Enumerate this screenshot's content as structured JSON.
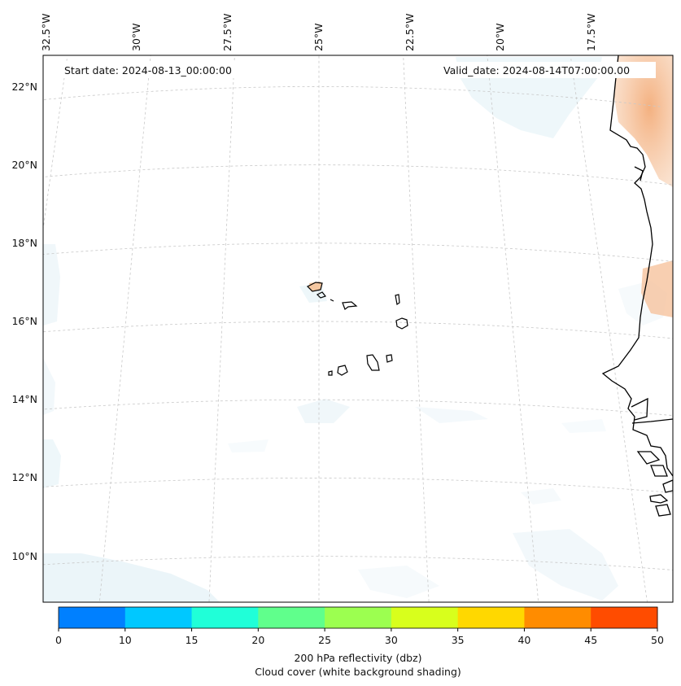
{
  "map": {
    "lon_labels": [
      {
        "value": -32.5,
        "text": "32.5°W"
      },
      {
        "value": -30,
        "text": "30°W"
      },
      {
        "value": -27.5,
        "text": "27.5°W"
      },
      {
        "value": -25,
        "text": "25°W"
      },
      {
        "value": -22.5,
        "text": "22.5°W"
      },
      {
        "value": -20,
        "text": "20°W"
      },
      {
        "value": -17.5,
        "text": "17.5°W"
      }
    ],
    "lat_labels": [
      {
        "value": 22,
        "text": "22°N"
      },
      {
        "value": 20,
        "text": "20°N"
      },
      {
        "value": 18,
        "text": "18°N"
      },
      {
        "value": 16,
        "text": "16°N"
      },
      {
        "value": 14,
        "text": "14°N"
      },
      {
        "value": 12,
        "text": "12°N"
      },
      {
        "value": 10,
        "text": "10°N"
      }
    ],
    "start_date": "Start date: 2024-08-13_00:00:00",
    "valid_date": "Valid_date: 2024-08-14T07:00:00.00",
    "gridlines": true,
    "gridline_style": "dashed light gray",
    "coastline_color": "#000000",
    "cloud_color": "#d6e9f2",
    "reflectivity_region_color": "#f3b78a"
  },
  "colorbar": {
    "label_line1": "200 hPa reflectivity (dbz)",
    "label_line2": "Cloud cover (white background shading)",
    "ticks": [
      "0",
      "10",
      "15",
      "20",
      "25",
      "30",
      "35",
      "40",
      "45",
      "50"
    ],
    "colors": [
      "#0080ff",
      "#00c8ff",
      "#20ffd8",
      "#60ff8c",
      "#9cff50",
      "#d8ff1c",
      "#ffd800",
      "#ff8c00",
      "#ff4c00"
    ]
  }
}
